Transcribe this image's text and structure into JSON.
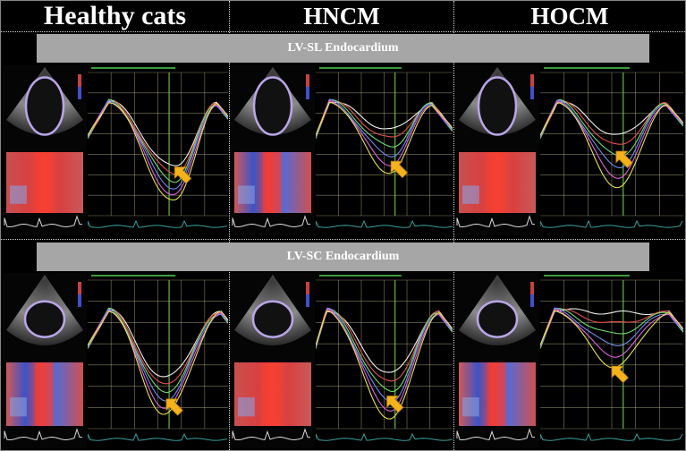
{
  "columns": [
    "Healthy cats",
    "HNCM",
    "HOCM"
  ],
  "rows": [
    {
      "banner": "LV-SL Endocardium"
    },
    {
      "banner": "LV-SC Endocardium"
    }
  ],
  "colors": {
    "arrow": "#f6b21b",
    "banner": "#a6a6a6",
    "grid": "#e8e4a8",
    "marker": "#7ddc5a"
  },
  "trace_colors": [
    "#f0f0f0",
    "#e35050",
    "#6fdc6f",
    "#6f8cf0",
    "#e060e0",
    "#e8e050"
  ]
}
